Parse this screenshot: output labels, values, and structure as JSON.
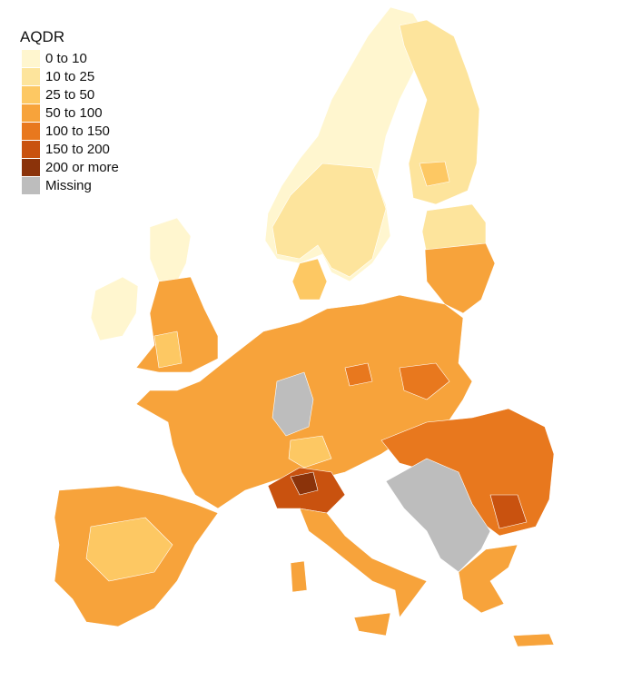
{
  "legend": {
    "title": "AQDR",
    "items": [
      {
        "label": "0 to 10",
        "color": "#fff6cf"
      },
      {
        "label": "10 to 25",
        "color": "#fde49c"
      },
      {
        "label": "25 to 50",
        "color": "#fdc863"
      },
      {
        "label": "50 to 100",
        "color": "#f7a33b"
      },
      {
        "label": "100 to 150",
        "color": "#e8781e"
      },
      {
        "label": "150 to 200",
        "color": "#c9520f"
      },
      {
        "label": "200 or more",
        "color": "#8b330a"
      },
      {
        "label": "Missing",
        "color": "#bdbdbd"
      }
    ]
  }
}
